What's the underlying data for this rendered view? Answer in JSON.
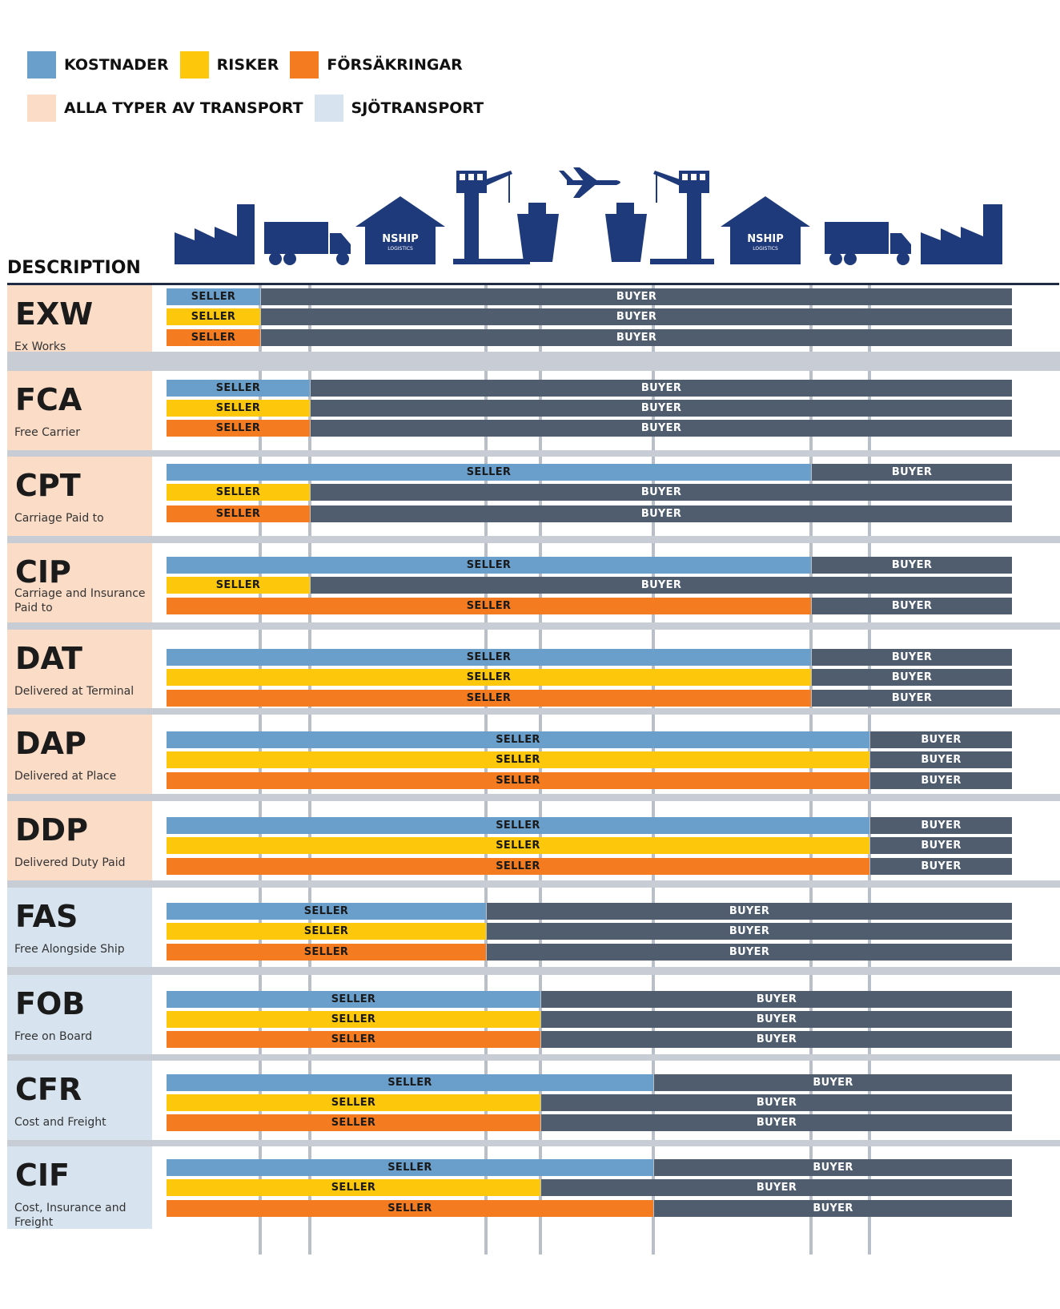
{
  "legend": {
    "row1": [
      {
        "label": "KOSTNADER",
        "color": "#6a9fcc"
      },
      {
        "label": "RISKER",
        "color": "#fdc70c"
      },
      {
        "label": "FÖRSÄKRINGAR",
        "color": "#f47b20"
      }
    ],
    "row2": [
      {
        "label": "ALLA TYPER AV TRANSPORT",
        "color": "#fbdcc7"
      },
      {
        "label": "SJÖTRANSPORT",
        "color": "#d7e4f0"
      }
    ]
  },
  "header": {
    "description_label": "DESCRIPTION",
    "logo_text": "NSHIP",
    "logo_sub": "LOGISTICS",
    "icon_color": "#1f3a7a",
    "icons": [
      "factory-icon",
      "truck-icon",
      "warehouse-icon",
      "port-crane-icon",
      "ship-icon",
      "airplane-icon",
      "ship-icon",
      "port-crane-icon",
      "warehouse-icon",
      "truck-icon",
      "factory-icon"
    ]
  },
  "labels": {
    "seller": "SELLER",
    "buyer": "BUYER"
  },
  "colors": {
    "costs": "#6a9fcc",
    "risks": "#fdc70c",
    "insurance": "#f47b20",
    "buyer": "#4f5d6e",
    "all_transport_bg": "#fbdcc7",
    "sea_transport_bg": "#d7e4f0"
  },
  "stages": [
    "factory",
    "truck",
    "warehouse",
    "port",
    "ship",
    "air",
    "ship",
    "port",
    "warehouse",
    "truck",
    "factory"
  ],
  "terms": [
    {
      "code": "EXW",
      "name": "Ex Works",
      "group": "all",
      "handover_stage": [
        0,
        0,
        0
      ]
    },
    {
      "code": "FCA",
      "name": "Free Carrier",
      "group": "all",
      "handover_stage": [
        1,
        1,
        1
      ]
    },
    {
      "code": "CPT",
      "name": "Carriage Paid to",
      "group": "all",
      "handover_stage": [
        7,
        1,
        1
      ]
    },
    {
      "code": "CIP",
      "name": "Carriage and Insurance Paid to",
      "group": "all",
      "handover_stage": [
        7,
        1,
        7
      ]
    },
    {
      "code": "DAT",
      "name": "Delivered at Terminal",
      "group": "all",
      "handover_stage": [
        7,
        7,
        7
      ]
    },
    {
      "code": "DAP",
      "name": "Delivered at Place",
      "group": "all",
      "handover_stage": [
        8,
        8,
        8
      ]
    },
    {
      "code": "DDP",
      "name": "Delivered Duty Paid",
      "group": "all",
      "handover_stage": [
        8,
        8,
        8
      ]
    },
    {
      "code": "FAS",
      "name": "Free Alongside Ship",
      "group": "sea",
      "handover_stage": [
        3,
        3,
        3
      ]
    },
    {
      "code": "FOB",
      "name": "Free on Board",
      "group": "sea",
      "handover_stage": [
        4,
        4,
        4
      ]
    },
    {
      "code": "CFR",
      "name": "Cost and Freight",
      "group": "sea",
      "handover_stage": [
        6,
        4,
        4
      ]
    },
    {
      "code": "CIF",
      "name": "Cost, Insurance and Freight",
      "group": "sea",
      "handover_stage": [
        6,
        4,
        6
      ]
    }
  ]
}
